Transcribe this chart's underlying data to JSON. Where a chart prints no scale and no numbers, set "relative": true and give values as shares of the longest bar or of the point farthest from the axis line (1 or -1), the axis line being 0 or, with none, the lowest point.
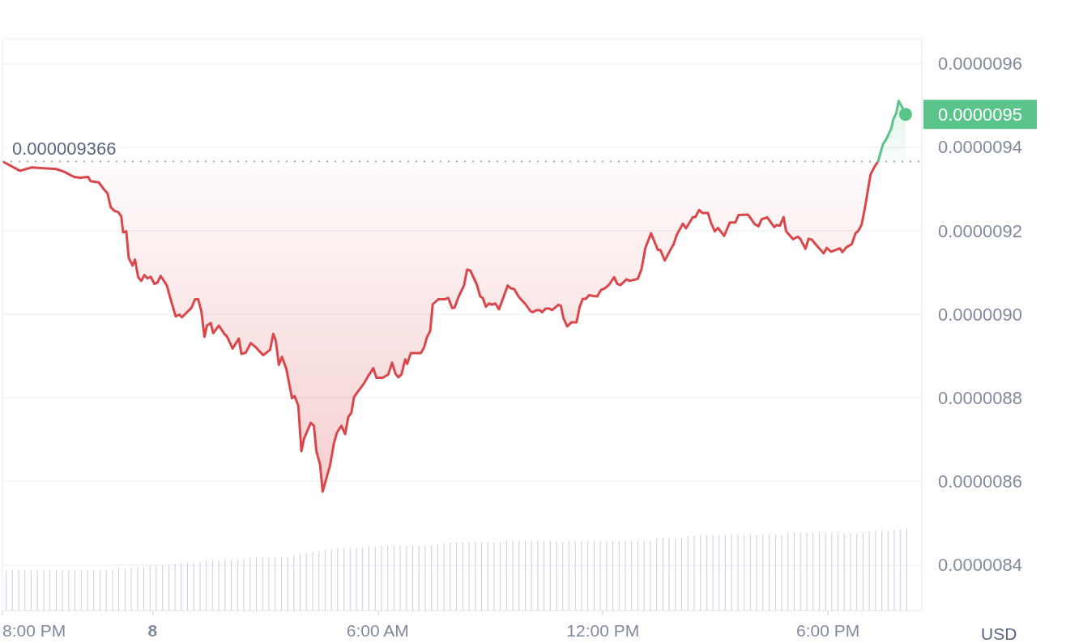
{
  "chart_data": [
    {
      "type": "line",
      "ylabel": "USD",
      "grid": "y",
      "marker": "none",
      "line_style": "solid",
      "tick_labels": "y",
      "xlim": [
        "--01-07T20:00",
        "--01-08T20:30"
      ],
      "ylim": [
        8.29e-06,
        9.66e-06
      ],
      "yticks": [
        {
          "value": 8.4e-06,
          "label": "0.0000084"
        },
        {
          "value": 8.6e-06,
          "label": "0.0000086"
        },
        {
          "value": 8.8e-06,
          "label": "0.0000088"
        },
        {
          "value": 9e-06,
          "label": "0.0000090"
        },
        {
          "value": 9.2e-06,
          "label": "0.0000092"
        },
        {
          "value": 9.4e-06,
          "label": "0.0000094"
        },
        {
          "value": 9.6e-06,
          "label": "0.0000096"
        }
      ],
      "ref_lines": [
        {
          "axis": "y",
          "value": 9.366e-06,
          "label": "0.000009366",
          "line_style": "dotted",
          "color": "#a1a7bb"
        }
      ],
      "annotations": [
        {
          "text": "0.0000095",
          "x": "--01-08T20:04",
          "y": 9.479e-06
        }
      ],
      "series": [
        {
          "color": "#d9474a",
          "x": [
            "--01-07T20:03",
            "--01-07T20:28",
            "--01-07T20:47",
            "--01-07T21:26",
            "--01-07T21:38",
            "--01-07T21:55",
            "--01-07T22:04",
            "--01-07T22:17",
            "--01-07T22:21",
            "--01-07T22:34",
            "--01-07T22:42",
            "--01-07T22:48",
            "--01-07T22:53",
            "--01-07T22:59",
            "--01-07T23:05",
            "--01-07T23:10",
            "--01-07T23:13",
            "--01-07T23:18",
            "--01-07T23:22",
            "--01-07T23:28",
            "--01-07T23:32",
            "--01-07T23:37",
            "--01-07T23:42",
            "--01-07T23:47",
            "--01-07T23:52",
            "--01-07T23:57",
            "--01-08T00:03",
            "--01-08T00:08",
            "--01-08T00:13",
            "--01-08T00:23",
            "--01-08T00:28",
            "--01-08T00:37",
            "--01-08T00:43",
            "--01-08T00:47",
            "--01-08T01:02",
            "--01-08T01:08",
            "--01-08T01:13",
            "--01-08T01:18",
            "--01-08T01:23",
            "--01-08T01:27",
            "--01-08T01:33",
            "--01-08T01:37",
            "--01-08T01:46",
            "--01-08T01:55",
            "--01-08T01:59",
            "--01-08T02:08",
            "--01-08T02:18",
            "--01-08T02:22",
            "--01-08T02:29",
            "--01-08T02:37",
            "--01-08T02:45",
            "--01-08T02:57",
            "--01-08T03:08",
            "--01-08T03:13",
            "--01-08T03:17",
            "--01-08T03:22",
            "--01-08T03:27",
            "--01-08T03:34",
            "--01-08T03:43",
            "--01-08T03:47",
            "--01-08T03:53",
            "--01-08T03:58",
            "--01-08T04:02",
            "--01-08T04:13",
            "--01-08T04:18",
            "--01-08T04:22",
            "--01-08T04:28",
            "--01-08T04:32",
            "--01-08T04:44",
            "--01-08T04:50",
            "--01-08T04:55",
            "--01-08T05:02",
            "--01-08T05:08",
            "--01-08T05:13",
            "--01-08T05:18",
            "--01-08T05:22",
            "--01-08T05:28",
            "--01-08T05:37",
            "--01-08T05:44",
            "--01-08T05:53",
            "--01-08T05:58",
            "--01-08T06:08",
            "--01-08T06:17",
            "--01-08T06:23",
            "--01-08T06:28",
            "--01-08T06:33",
            "--01-08T06:38",
            "--01-08T06:44",
            "--01-08T06:47",
            "--01-08T06:53",
            "--01-08T07:09",
            "--01-08T07:14",
            "--01-08T07:19",
            "--01-08T07:24",
            "--01-08T07:28",
            "--01-08T07:37",
            "--01-08T07:47",
            "--01-08T07:53",
            "--01-08T07:59",
            "--01-08T08:03",
            "--01-08T08:09",
            "--01-08T08:18",
            "--01-08T08:23",
            "--01-08T08:28",
            "--01-08T08:38",
            "--01-08T08:44",
            "--01-08T08:48",
            "--01-08T08:53",
            "--01-08T08:58",
            "--01-08T09:03",
            "--01-08T09:08",
            "--01-08T09:14",
            "--01-08T09:28",
            "--01-08T09:33",
            "--01-08T09:38",
            "--01-08T09:46",
            "--01-08T09:57",
            "--01-08T10:04",
            "--01-08T10:08",
            "--01-08T10:14",
            "--01-08T10:19",
            "--01-08T10:23",
            "--01-08T10:29",
            "--01-08T10:34",
            "--01-08T10:39",
            "--01-08T10:49",
            "--01-08T10:53",
            "--01-08T10:57",
            "--01-08T11:03",
            "--01-08T11:10",
            "--01-08T11:18",
            "--01-08T11:23",
            "--01-08T11:28",
            "--01-08T11:33",
            "--01-08T11:38",
            "--01-08T11:45",
            "--01-08T11:51",
            "--01-08T11:57",
            "--01-08T12:03",
            "--01-08T12:10",
            "--01-08T12:18",
            "--01-08T12:23",
            "--01-08T12:28",
            "--01-08T12:38",
            "--01-08T12:43",
            "--01-08T12:56",
            "--01-08T13:02",
            "--01-08T13:08",
            "--01-08T13:17",
            "--01-08T13:28",
            "--01-08T13:32",
            "--01-08T13:39",
            "--01-08T13:50",
            "--01-08T13:53",
            "--01-08T13:58",
            "--01-08T14:08",
            "--01-08T14:13",
            "--01-08T14:24",
            "--01-08T14:28",
            "--01-08T14:34",
            "--01-08T14:39",
            "--01-08T14:48",
            "--01-08T14:53",
            "--01-08T14:59",
            "--01-08T15:04",
            "--01-08T15:14",
            "--01-08T15:23",
            "--01-08T15:32",
            "--01-08T15:37",
            "--01-08T15:52",
            "--01-08T16:03",
            "--01-08T16:09",
            "--01-08T16:14",
            "--01-08T16:23",
            "--01-08T16:34",
            "--01-08T16:38",
            "--01-08T16:43",
            "--01-08T16:49",
            "--01-08T16:53",
            "--01-08T17:04",
            "--01-08T17:12",
            "--01-08T17:16",
            "--01-08T17:24",
            "--01-08T17:29",
            "--01-08T17:34",
            "--01-08T17:40",
            "--01-08T17:53",
            "--01-08T17:58",
            "--01-08T18:05",
            "--01-08T18:19",
            "--01-08T18:23",
            "--01-08T18:29",
            "--01-08T18:38",
            "--01-08T18:44",
            "--01-08T18:49",
            "--01-08T18:54",
            "--01-08T19:00",
            "--01-08T19:08",
            "--01-08T19:15",
            "--01-08T19:20"
          ],
          "values": [
            9.364e-06,
            9.344e-06,
            9.352e-06,
            9.348e-06,
            9.342e-06,
            9.329e-06,
            9.327e-06,
            9.329e-06,
            9.319e-06,
            9.316e-06,
            9.3e-06,
            9.29e-06,
            9.257e-06,
            9.248e-06,
            9.245e-06,
            9.235e-06,
            9.196e-06,
            9.199e-06,
            9.135e-06,
            9.117e-06,
            9.131e-06,
            9.089e-06,
            9.08e-06,
            9.094e-06,
            9.086e-06,
            9.09e-06,
            9.073e-06,
            9.076e-06,
            9.092e-06,
            9.069e-06,
            9.041e-06,
            8.995e-06,
            8.999e-06,
            8.993e-06,
            9.015e-06,
            9.036e-06,
            9.036e-06,
            9.008e-06,
            8.946e-06,
            8.973e-06,
            8.979e-06,
            8.955e-06,
            8.973e-06,
            8.953e-06,
            8.947e-06,
            8.918e-06,
            8.942e-06,
            8.905e-06,
            8.908e-06,
            8.931e-06,
            8.921e-06,
            8.902e-06,
            8.915e-06,
            8.953e-06,
            8.937e-06,
            8.879e-06,
            8.898e-06,
            8.869e-06,
            8.799e-06,
            8.804e-06,
            8.782e-06,
            8.672e-06,
            8.701e-06,
            8.74e-06,
            8.733e-06,
            8.672e-06,
            8.639e-06,
            8.575e-06,
            8.639e-06,
            8.691e-06,
            8.717e-06,
            8.733e-06,
            8.713e-06,
            8.754e-06,
            8.764e-06,
            8.801e-06,
            8.814e-06,
            8.832e-06,
            8.85e-06,
            8.871e-06,
            8.848e-06,
            8.848e-06,
            8.856e-06,
            8.884e-06,
            8.859e-06,
            8.849e-06,
            8.856e-06,
            8.892e-06,
            8.881e-06,
            8.907e-06,
            8.907e-06,
            8.92e-06,
            8.946e-06,
            8.96e-06,
            9.024e-06,
            9.036e-06,
            9.036e-06,
            9.039e-06,
            9.015e-06,
            9.016e-06,
            9.041e-06,
            9.069e-06,
            9.107e-06,
            9.105e-06,
            9.073e-06,
            9.043e-06,
            9.039e-06,
            9.018e-06,
            9.026e-06,
            9.023e-06,
            9.026e-06,
            9.012e-06,
            9.069e-06,
            9.062e-06,
            9.061e-06,
            9.041e-06,
            9.023e-06,
            9.008e-06,
            9.005e-06,
            9.01e-06,
            9.01e-06,
            9.005e-06,
            9.014e-06,
            9.014e-06,
            9.01e-06,
            9.023e-06,
            9.02e-06,
            8.991e-06,
            8.971e-06,
            8.981e-06,
            8.981e-06,
            9.018e-06,
            9.037e-06,
            9.037e-06,
            9.046e-06,
            9.044e-06,
            9.043e-06,
            9.058e-06,
            9.062e-06,
            9.071e-06,
            9.089e-06,
            9.073e-06,
            9.07e-06,
            9.084e-06,
            9.08e-06,
            9.085e-06,
            9.109e-06,
            9.159e-06,
            9.194e-06,
            9.154e-06,
            9.154e-06,
            9.129e-06,
            9.16e-06,
            9.167e-06,
            9.19e-06,
            9.217e-06,
            9.206e-06,
            9.233e-06,
            9.233e-06,
            9.25e-06,
            9.243e-06,
            9.243e-06,
            9.219e-06,
            9.199e-06,
            9.207e-06,
            9.188e-06,
            9.22e-06,
            9.22e-06,
            9.238e-06,
            9.239e-06,
            9.216e-06,
            9.211e-06,
            9.228e-06,
            9.232e-06,
            9.209e-06,
            9.214e-06,
            9.212e-06,
            9.233e-06,
            9.199e-06,
            9.18e-06,
            9.186e-06,
            9.18e-06,
            9.157e-06,
            9.181e-06,
            9.179e-06,
            9.168e-06,
            9.146e-06,
            9.159e-06,
            9.15e-06,
            9.158e-06,
            9.149e-06,
            9.16e-06,
            9.168e-06,
            9.194e-06,
            9.201e-06,
            9.216e-06,
            9.263e-06,
            9.335e-06,
            9.355e-06,
            9.366e-06
          ],
          "lower": [
            9.364e-06,
            9.344e-06,
            9.352e-06,
            9.348e-06,
            9.342e-06,
            9.329e-06,
            9.327e-06,
            9.329e-06,
            9.319e-06,
            9.316e-06,
            9.3e-06,
            9.29e-06,
            9.257e-06,
            9.248e-06,
            9.245e-06,
            9.235e-06,
            9.196e-06,
            9.199e-06,
            9.135e-06,
            9.117e-06,
            9.131e-06,
            9.089e-06,
            9.08e-06,
            9.094e-06,
            9.086e-06,
            9.09e-06,
            9.073e-06,
            9.076e-06,
            9.092e-06,
            9.069e-06,
            9.041e-06,
            8.995e-06,
            8.999e-06,
            8.993e-06,
            9.015e-06,
            9.036e-06,
            9.036e-06,
            9.008e-06,
            8.946e-06,
            8.973e-06,
            8.979e-06,
            8.955e-06,
            8.973e-06,
            8.953e-06,
            8.947e-06,
            8.918e-06,
            8.942e-06,
            8.905e-06,
            8.908e-06,
            8.931e-06,
            8.921e-06,
            8.902e-06,
            8.915e-06,
            8.953e-06,
            8.937e-06,
            8.879e-06,
            8.898e-06,
            8.869e-06,
            8.799e-06,
            8.804e-06,
            8.782e-06,
            8.672e-06,
            8.701e-06,
            8.74e-06,
            8.733e-06,
            8.672e-06,
            8.639e-06,
            8.575e-06,
            8.639e-06,
            8.691e-06,
            8.717e-06,
            8.733e-06,
            8.713e-06,
            8.754e-06,
            8.764e-06,
            8.801e-06,
            8.814e-06,
            8.832e-06,
            8.85e-06,
            8.871e-06,
            8.848e-06,
            8.848e-06,
            8.856e-06,
            8.884e-06,
            8.859e-06,
            8.849e-06,
            8.856e-06,
            8.892e-06,
            8.881e-06,
            8.907e-06,
            8.907e-06,
            8.92e-06,
            8.946e-06,
            8.96e-06,
            9.024e-06,
            9.036e-06,
            9.036e-06,
            9.039e-06,
            9.015e-06,
            9.016e-06,
            9.041e-06,
            9.069e-06,
            9.107e-06,
            9.105e-06,
            9.073e-06,
            9.043e-06,
            9.039e-06,
            9.018e-06,
            9.026e-06,
            9.023e-06,
            9.026e-06,
            9.012e-06,
            9.069e-06,
            9.062e-06,
            9.061e-06,
            9.041e-06,
            9.023e-06,
            9.008e-06,
            9.005e-06,
            9.01e-06,
            9.01e-06,
            9.005e-06,
            9.014e-06,
            9.014e-06,
            9.01e-06,
            9.023e-06,
            9.02e-06,
            8.991e-06,
            8.971e-06,
            8.981e-06,
            8.981e-06,
            9.018e-06,
            9.037e-06,
            9.037e-06,
            9.046e-06,
            9.044e-06,
            9.043e-06,
            9.058e-06,
            9.062e-06,
            9.071e-06,
            9.089e-06,
            9.073e-06,
            9.07e-06,
            9.084e-06,
            9.08e-06,
            9.085e-06,
            9.109e-06,
            9.159e-06,
            9.194e-06,
            9.154e-06,
            9.154e-06,
            9.129e-06,
            9.16e-06,
            9.167e-06,
            9.19e-06,
            9.217e-06,
            9.206e-06,
            9.233e-06,
            9.233e-06,
            9.25e-06,
            9.243e-06,
            9.243e-06,
            9.219e-06,
            9.199e-06,
            9.207e-06,
            9.188e-06,
            9.22e-06,
            9.22e-06,
            9.238e-06,
            9.239e-06,
            9.216e-06,
            9.211e-06,
            9.228e-06,
            9.232e-06,
            9.209e-06,
            9.214e-06,
            9.212e-06,
            9.233e-06,
            9.199e-06,
            9.18e-06,
            9.186e-06,
            9.18e-06,
            9.157e-06,
            9.181e-06,
            9.179e-06,
            9.168e-06,
            9.146e-06,
            9.159e-06,
            9.15e-06,
            9.158e-06,
            9.149e-06,
            9.16e-06,
            9.168e-06,
            9.194e-06,
            9.201e-06,
            9.216e-06,
            9.263e-06,
            9.335e-06,
            9.355e-06,
            9.366e-06
          ],
          "upper": [
            9.366e-06,
            9.366e-06,
            9.366e-06,
            9.366e-06,
            9.366e-06,
            9.366e-06,
            9.366e-06,
            9.366e-06,
            9.366e-06,
            9.366e-06,
            9.366e-06,
            9.366e-06,
            9.366e-06,
            9.366e-06,
            9.366e-06,
            9.366e-06,
            9.366e-06,
            9.366e-06,
            9.366e-06,
            9.366e-06,
            9.366e-06,
            9.366e-06,
            9.366e-06,
            9.366e-06,
            9.366e-06,
            9.366e-06,
            9.366e-06,
            9.366e-06,
            9.366e-06,
            9.366e-06,
            9.366e-06,
            9.366e-06,
            9.366e-06,
            9.366e-06,
            9.366e-06,
            9.366e-06,
            9.366e-06,
            9.366e-06,
            9.366e-06,
            9.366e-06,
            9.366e-06,
            9.366e-06,
            9.366e-06,
            9.366e-06,
            9.366e-06,
            9.366e-06,
            9.366e-06,
            9.366e-06,
            9.366e-06,
            9.366e-06,
            9.366e-06,
            9.366e-06,
            9.366e-06,
            9.366e-06,
            9.366e-06,
            9.366e-06,
            9.366e-06,
            9.366e-06,
            9.366e-06,
            9.366e-06,
            9.366e-06,
            9.366e-06,
            9.366e-06,
            9.366e-06,
            9.366e-06,
            9.366e-06,
            9.366e-06,
            9.366e-06,
            9.366e-06,
            9.366e-06,
            9.366e-06,
            9.366e-06,
            9.366e-06,
            9.366e-06,
            9.366e-06,
            9.366e-06,
            9.366e-06,
            9.366e-06,
            9.366e-06,
            9.366e-06,
            9.366e-06,
            9.366e-06,
            9.366e-06,
            9.366e-06,
            9.366e-06,
            9.366e-06,
            9.366e-06,
            9.366e-06,
            9.366e-06,
            9.366e-06,
            9.366e-06,
            9.366e-06,
            9.366e-06,
            9.366e-06,
            9.366e-06,
            9.366e-06,
            9.366e-06,
            9.366e-06,
            9.366e-06,
            9.366e-06,
            9.366e-06,
            9.366e-06,
            9.366e-06,
            9.366e-06,
            9.366e-06,
            9.366e-06,
            9.366e-06,
            9.366e-06,
            9.366e-06,
            9.366e-06,
            9.366e-06,
            9.366e-06,
            9.366e-06,
            9.366e-06,
            9.366e-06,
            9.366e-06,
            9.366e-06,
            9.366e-06,
            9.366e-06,
            9.366e-06,
            9.366e-06,
            9.366e-06,
            9.366e-06,
            9.366e-06,
            9.366e-06,
            9.366e-06,
            9.366e-06,
            9.366e-06,
            9.366e-06,
            9.366e-06,
            9.366e-06,
            9.366e-06,
            9.366e-06,
            9.366e-06,
            9.366e-06,
            9.366e-06,
            9.366e-06,
            9.366e-06,
            9.366e-06,
            9.366e-06,
            9.366e-06,
            9.366e-06,
            9.366e-06,
            9.366e-06,
            9.366e-06,
            9.366e-06,
            9.366e-06,
            9.366e-06,
            9.366e-06,
            9.366e-06,
            9.366e-06,
            9.366e-06,
            9.366e-06,
            9.366e-06,
            9.366e-06,
            9.366e-06,
            9.366e-06,
            9.366e-06,
            9.366e-06,
            9.366e-06,
            9.366e-06,
            9.366e-06,
            9.366e-06,
            9.366e-06,
            9.366e-06,
            9.366e-06,
            9.366e-06,
            9.366e-06,
            9.366e-06,
            9.366e-06,
            9.366e-06,
            9.366e-06,
            9.366e-06,
            9.366e-06,
            9.366e-06,
            9.366e-06,
            9.366e-06,
            9.366e-06,
            9.366e-06,
            9.366e-06,
            9.366e-06,
            9.366e-06,
            9.366e-06,
            9.366e-06,
            9.366e-06,
            9.366e-06,
            9.366e-06,
            9.366e-06,
            9.366e-06,
            9.366e-06,
            9.366e-06,
            9.366e-06,
            9.366e-06,
            9.366e-06,
            9.366e-06,
            9.366e-06,
            9.366e-06,
            9.366e-06,
            9.366e-06,
            9.366e-06
          ]
        },
        {
          "color": "#5bc48a",
          "x": [
            "--01-08T19:20",
            "--01-08T19:28",
            "--01-08T19:33",
            "--01-08T19:41",
            "--01-08T19:45",
            "--01-08T19:49",
            "--01-08T19:53",
            "--01-08T19:58",
            "--01-08T20:04"
          ],
          "values": [
            9.366e-06,
            9.408e-06,
            9.419e-06,
            9.445e-06,
            9.47e-06,
            9.481e-06,
            9.511e-06,
            9.498e-06,
            9.479e-06
          ],
          "lower": [
            9.366e-06,
            9.366e-06,
            9.366e-06,
            9.366e-06,
            9.366e-06,
            9.366e-06,
            9.366e-06,
            9.366e-06,
            9.366e-06
          ],
          "upper": [
            9.366e-06,
            9.408e-06,
            9.419e-06,
            9.445e-06,
            9.47e-06,
            9.481e-06,
            9.511e-06,
            9.498e-06,
            9.479e-06
          ]
        }
      ]
    },
    {
      "type": "bar",
      "relative": true,
      "color": "#c8cde0",
      "tick_labels": "x",
      "xlim": [
        "--01-07T20:00",
        "--01-08T20:30"
      ],
      "xticks": [
        {
          "value": "--01-07T20:00",
          "label": "8:00 PM"
        },
        {
          "value": "--01-08T00:00",
          "label": "8"
        },
        {
          "value": "--01-08T06:00",
          "label": "6:00 AM"
        },
        {
          "value": "--01-08T12:00",
          "label": "12:00 PM"
        },
        {
          "value": "--01-08T18:00",
          "label": "6:00 PM"
        }
      ],
      "x": [
        "--01-07T20:06",
        "--01-07T20:16",
        "--01-07T20:26",
        "--01-07T20:36",
        "--01-07T20:46",
        "--01-07T20:56",
        "--01-07T21:06",
        "--01-07T21:16",
        "--01-07T21:26",
        "--01-07T21:36",
        "--01-07T21:46",
        "--01-07T21:56",
        "--01-07T22:06",
        "--01-07T22:16",
        "--01-07T22:26",
        "--01-07T22:36",
        "--01-07T22:46",
        "--01-07T22:56",
        "--01-07T23:06",
        "--01-07T23:16",
        "--01-07T23:26",
        "--01-07T23:36",
        "--01-07T23:46",
        "--01-07T23:56",
        "--01-08T00:06",
        "--01-08T00:16",
        "--01-08T00:26",
        "--01-08T00:36",
        "--01-08T00:46",
        "--01-08T00:56",
        "--01-08T01:06",
        "--01-08T01:16",
        "--01-08T01:26",
        "--01-08T01:36",
        "--01-08T01:46",
        "--01-08T01:56",
        "--01-08T02:06",
        "--01-08T02:16",
        "--01-08T02:26",
        "--01-08T02:36",
        "--01-08T02:46",
        "--01-08T02:56",
        "--01-08T03:06",
        "--01-08T03:16",
        "--01-08T03:26",
        "--01-08T03:36",
        "--01-08T03:46",
        "--01-08T03:56",
        "--01-08T04:06",
        "--01-08T04:16",
        "--01-08T04:26",
        "--01-08T04:36",
        "--01-08T04:46",
        "--01-08T04:56",
        "--01-08T05:06",
        "--01-08T05:16",
        "--01-08T05:26",
        "--01-08T05:36",
        "--01-08T05:46",
        "--01-08T05:56",
        "--01-08T06:06",
        "--01-08T06:16",
        "--01-08T06:26",
        "--01-08T06:36",
        "--01-08T06:46",
        "--01-08T06:56",
        "--01-08T07:06",
        "--01-08T07:16",
        "--01-08T07:26",
        "--01-08T07:36",
        "--01-08T07:46",
        "--01-08T07:56",
        "--01-08T08:06",
        "--01-08T08:16",
        "--01-08T08:26",
        "--01-08T08:36",
        "--01-08T08:46",
        "--01-08T08:56",
        "--01-08T09:06",
        "--01-08T09:16",
        "--01-08T09:26",
        "--01-08T09:36",
        "--01-08T09:46",
        "--01-08T09:56",
        "--01-08T10:06",
        "--01-08T10:16",
        "--01-08T10:26",
        "--01-08T10:36",
        "--01-08T10:46",
        "--01-08T10:56",
        "--01-08T11:06",
        "--01-08T11:16",
        "--01-08T11:26",
        "--01-08T11:36",
        "--01-08T11:46",
        "--01-08T11:56",
        "--01-08T12:06",
        "--01-08T12:16",
        "--01-08T12:26",
        "--01-08T12:36",
        "--01-08T12:46",
        "--01-08T12:56",
        "--01-08T13:06",
        "--01-08T13:16",
        "--01-08T13:26",
        "--01-08T13:36",
        "--01-08T13:46",
        "--01-08T13:56",
        "--01-08T14:06",
        "--01-08T14:16",
        "--01-08T14:26",
        "--01-08T14:36",
        "--01-08T14:46",
        "--01-08T14:56",
        "--01-08T15:06",
        "--01-08T15:16",
        "--01-08T15:26",
        "--01-08T15:36",
        "--01-08T15:46",
        "--01-08T15:56",
        "--01-08T16:06",
        "--01-08T16:16",
        "--01-08T16:26",
        "--01-08T16:36",
        "--01-08T16:46",
        "--01-08T16:56",
        "--01-08T17:06",
        "--01-08T17:16",
        "--01-08T17:26",
        "--01-08T17:36",
        "--01-08T17:46",
        "--01-08T17:56",
        "--01-08T18:06",
        "--01-08T18:16",
        "--01-08T18:26",
        "--01-08T18:36",
        "--01-08T18:46",
        "--01-08T18:56",
        "--01-08T19:06",
        "--01-08T19:16",
        "--01-08T19:26",
        "--01-08T19:36",
        "--01-08T19:46",
        "--01-08T19:56",
        "--01-08T20:06"
      ],
      "values": [
        0.49,
        0.49,
        0.49,
        0.49,
        0.49,
        0.49,
        0.49,
        0.49,
        0.49,
        0.49,
        0.49,
        0.49,
        0.49,
        0.49,
        0.49,
        0.49,
        0.49,
        0.5,
        0.51,
        0.51,
        0.52,
        0.53,
        0.53,
        0.55,
        0.55,
        0.55,
        0.55,
        0.57,
        0.58,
        0.58,
        0.58,
        0.6,
        0.61,
        0.61,
        0.61,
        0.62,
        0.62,
        0.62,
        0.63,
        0.64,
        0.65,
        0.65,
        0.65,
        0.65,
        0.65,
        0.65,
        0.67,
        0.69,
        0.7,
        0.71,
        0.72,
        0.74,
        0.75,
        0.76,
        0.76,
        0.76,
        0.76,
        0.77,
        0.78,
        0.78,
        0.79,
        0.79,
        0.79,
        0.79,
        0.79,
        0.79,
        0.79,
        0.79,
        0.79,
        0.81,
        0.82,
        0.83,
        0.83,
        0.83,
        0.83,
        0.83,
        0.83,
        0.83,
        0.83,
        0.83,
        0.85,
        0.85,
        0.85,
        0.85,
        0.85,
        0.85,
        0.85,
        0.85,
        0.84,
        0.84,
        0.84,
        0.84,
        0.84,
        0.84,
        0.85,
        0.85,
        0.85,
        0.85,
        0.85,
        0.85,
        0.85,
        0.85,
        0.85,
        0.85,
        0.88,
        0.89,
        0.89,
        0.89,
        0.89,
        0.91,
        0.91,
        0.92,
        0.92,
        0.92,
        0.92,
        0.92,
        0.92,
        0.92,
        0.92,
        0.92,
        0.92,
        0.92,
        0.92,
        0.92,
        0.92,
        0.95,
        0.95,
        0.95,
        0.95,
        0.95,
        0.95,
        0.95,
        0.95,
        0.94,
        0.94,
        0.94,
        0.94,
        0.94,
        0.96,
        0.97,
        0.97,
        0.97,
        0.98,
        0.99,
        1
      ]
    }
  ]
}
